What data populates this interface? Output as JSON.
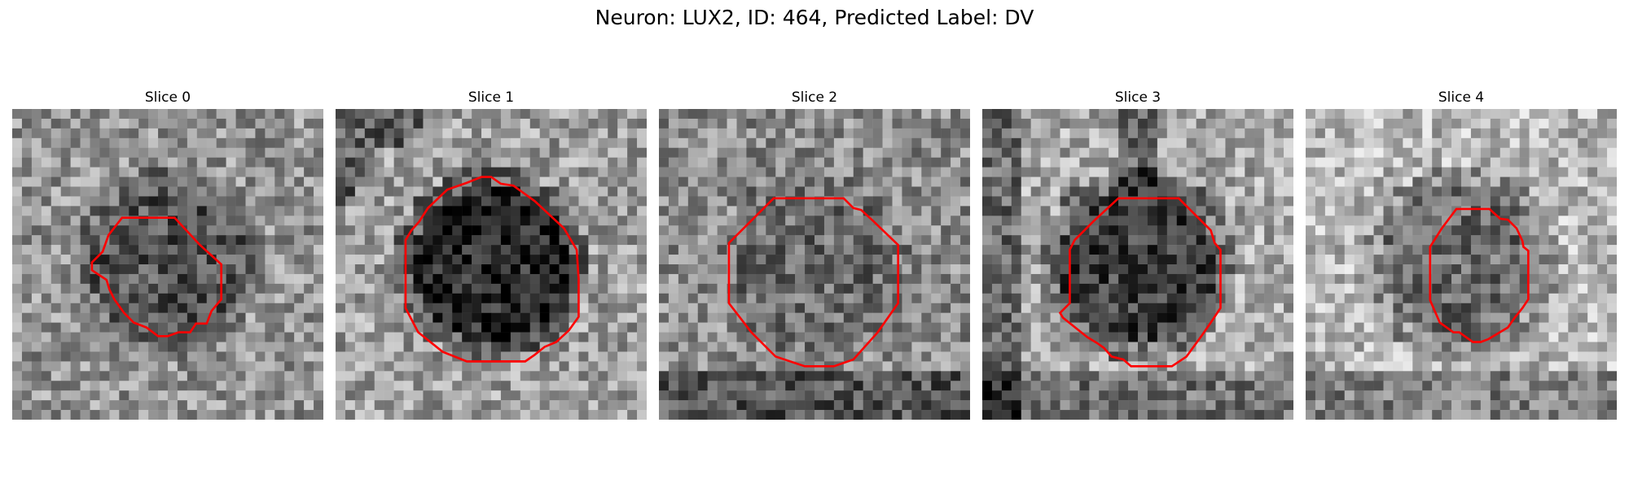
{
  "figure": {
    "title": "Neuron: LUX2, ID: 464, Predicted Label: DV"
  },
  "panels": [
    {
      "title": "Slice 0",
      "seed": 11,
      "center_tone": 0.32,
      "surround_tone": 0.58,
      "dark_bottom": false
    },
    {
      "title": "Slice 1",
      "seed": 23,
      "center_tone": 0.15,
      "surround_tone": 0.62,
      "dark_bottom": false
    },
    {
      "title": "Slice 2",
      "seed": 37,
      "center_tone": 0.42,
      "surround_tone": 0.55,
      "dark_bottom": true
    },
    {
      "title": "Slice 3",
      "seed": 53,
      "center_tone": 0.25,
      "surround_tone": 0.66,
      "dark_bottom": true
    },
    {
      "title": "Slice 4",
      "seed": 71,
      "center_tone": 0.42,
      "surround_tone": 0.72,
      "dark_bottom": true
    }
  ],
  "contour_color": "#ff0000"
}
